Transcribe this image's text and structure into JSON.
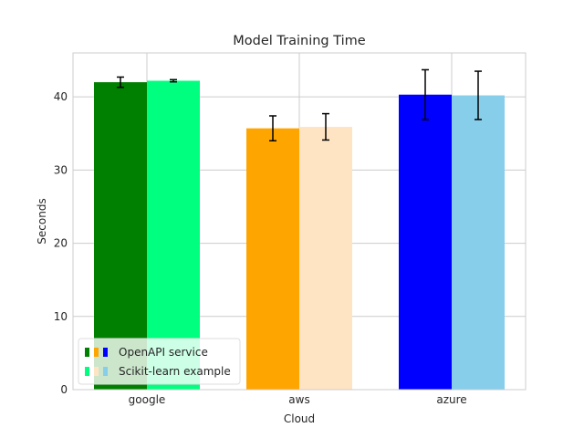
{
  "chart_data": {
    "type": "bar",
    "title": "Model Training Time",
    "xlabel": "Cloud",
    "ylabel": "Seconds",
    "categories": [
      "google",
      "aws",
      "azure"
    ],
    "ylim": [
      0,
      46
    ],
    "yticks": [
      0,
      10,
      20,
      30,
      40
    ],
    "grid": true,
    "legend_position": "lower-left",
    "series": [
      {
        "name": "OpenAPI service",
        "values": [
          42.0,
          35.7,
          40.3
        ],
        "errors": [
          0.7,
          1.7,
          3.4
        ],
        "colors": [
          "#008000",
          "#FFA500",
          "#0000FF"
        ]
      },
      {
        "name": "Scikit-learn example",
        "values": [
          42.2,
          35.9,
          40.2
        ],
        "errors": [
          0.15,
          1.8,
          3.3
        ],
        "colors": [
          "#00FF7F",
          "#FFE4C4",
          "#87CEEB"
        ]
      }
    ]
  }
}
